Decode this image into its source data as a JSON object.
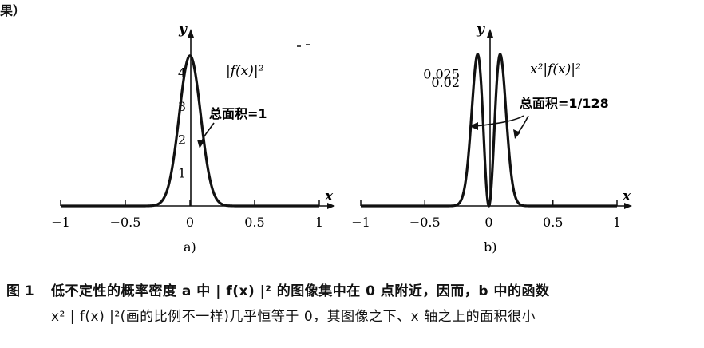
{
  "top_fragment": "果）",
  "caption": {
    "label": "图 1",
    "line1": "低不定性的概率密度 a 中 | f(x) |² 的图像集中在 0 点附近，因而，b 中的函数",
    "line2": "x² | f(x) |²(画的比例不一样)几乎恒等于 0，其图像之下、x 轴之上的面积很小"
  },
  "chart_data": [
    {
      "type": "line",
      "panel_label": "a)",
      "curve_label": "|f(x)|²",
      "annotation": "总面积=1",
      "xlabel": "x",
      "ylabel": "y",
      "xlim": [
        -1,
        1
      ],
      "ylim": [
        0,
        4.6
      ],
      "x_tick_labels": [
        "−1",
        "−0.5",
        "0",
        "0.5",
        "1"
      ],
      "x_ticks": [
        -1,
        -0.5,
        0,
        0.5,
        1
      ],
      "y_tick_labels": [
        "1",
        "2",
        "3",
        "4"
      ],
      "y_ticks": [
        1,
        2,
        3,
        4
      ],
      "peak": {
        "x": 0,
        "y": 4.51
      },
      "series": [
        {
          "x": [
            -0.3,
            -0.25,
            -0.2,
            -0.15,
            -0.1,
            -0.05,
            0,
            0.05,
            0.1,
            0.15,
            0.2,
            0.25,
            0.3
          ],
          "y": [
            0.05,
            0.2,
            0.6,
            1.4,
            2.6,
            3.9,
            4.51,
            3.9,
            2.6,
            1.4,
            0.6,
            0.2,
            0.05
          ]
        }
      ]
    },
    {
      "type": "line",
      "panel_label": "b)",
      "curve_label": "x²|f(x)|²",
      "annotation": "总面积=1/128",
      "xlabel": "x",
      "ylabel": "y",
      "xlim": [
        -1,
        1
      ],
      "ylim": [
        0,
        0.029
      ],
      "x_tick_labels": [
        "−1",
        "−0.5",
        "0",
        "0.5",
        "1"
      ],
      "x_ticks": [
        -1,
        -0.5,
        0,
        0.5,
        1
      ],
      "y_tick_labels": [
        "0.025",
        "0.02"
      ],
      "y_ticks": [
        0.025,
        0.02
      ],
      "peaks": [
        {
          "x": -0.125,
          "y": 0.0287
        },
        {
          "x": 0.125,
          "y": 0.0287
        }
      ],
      "series": [
        {
          "x": [
            -0.35,
            -0.3,
            -0.25,
            -0.2,
            -0.15,
            -0.125,
            -0.1,
            -0.05,
            0,
            0.05,
            0.1,
            0.125,
            0.15,
            0.2,
            0.25,
            0.3,
            0.35
          ],
          "y": [
            0.0005,
            0.003,
            0.009,
            0.018,
            0.0265,
            0.0287,
            0.027,
            0.012,
            0,
            0.012,
            0.027,
            0.0287,
            0.0265,
            0.018,
            0.009,
            0.003,
            0.0005
          ]
        }
      ]
    }
  ]
}
